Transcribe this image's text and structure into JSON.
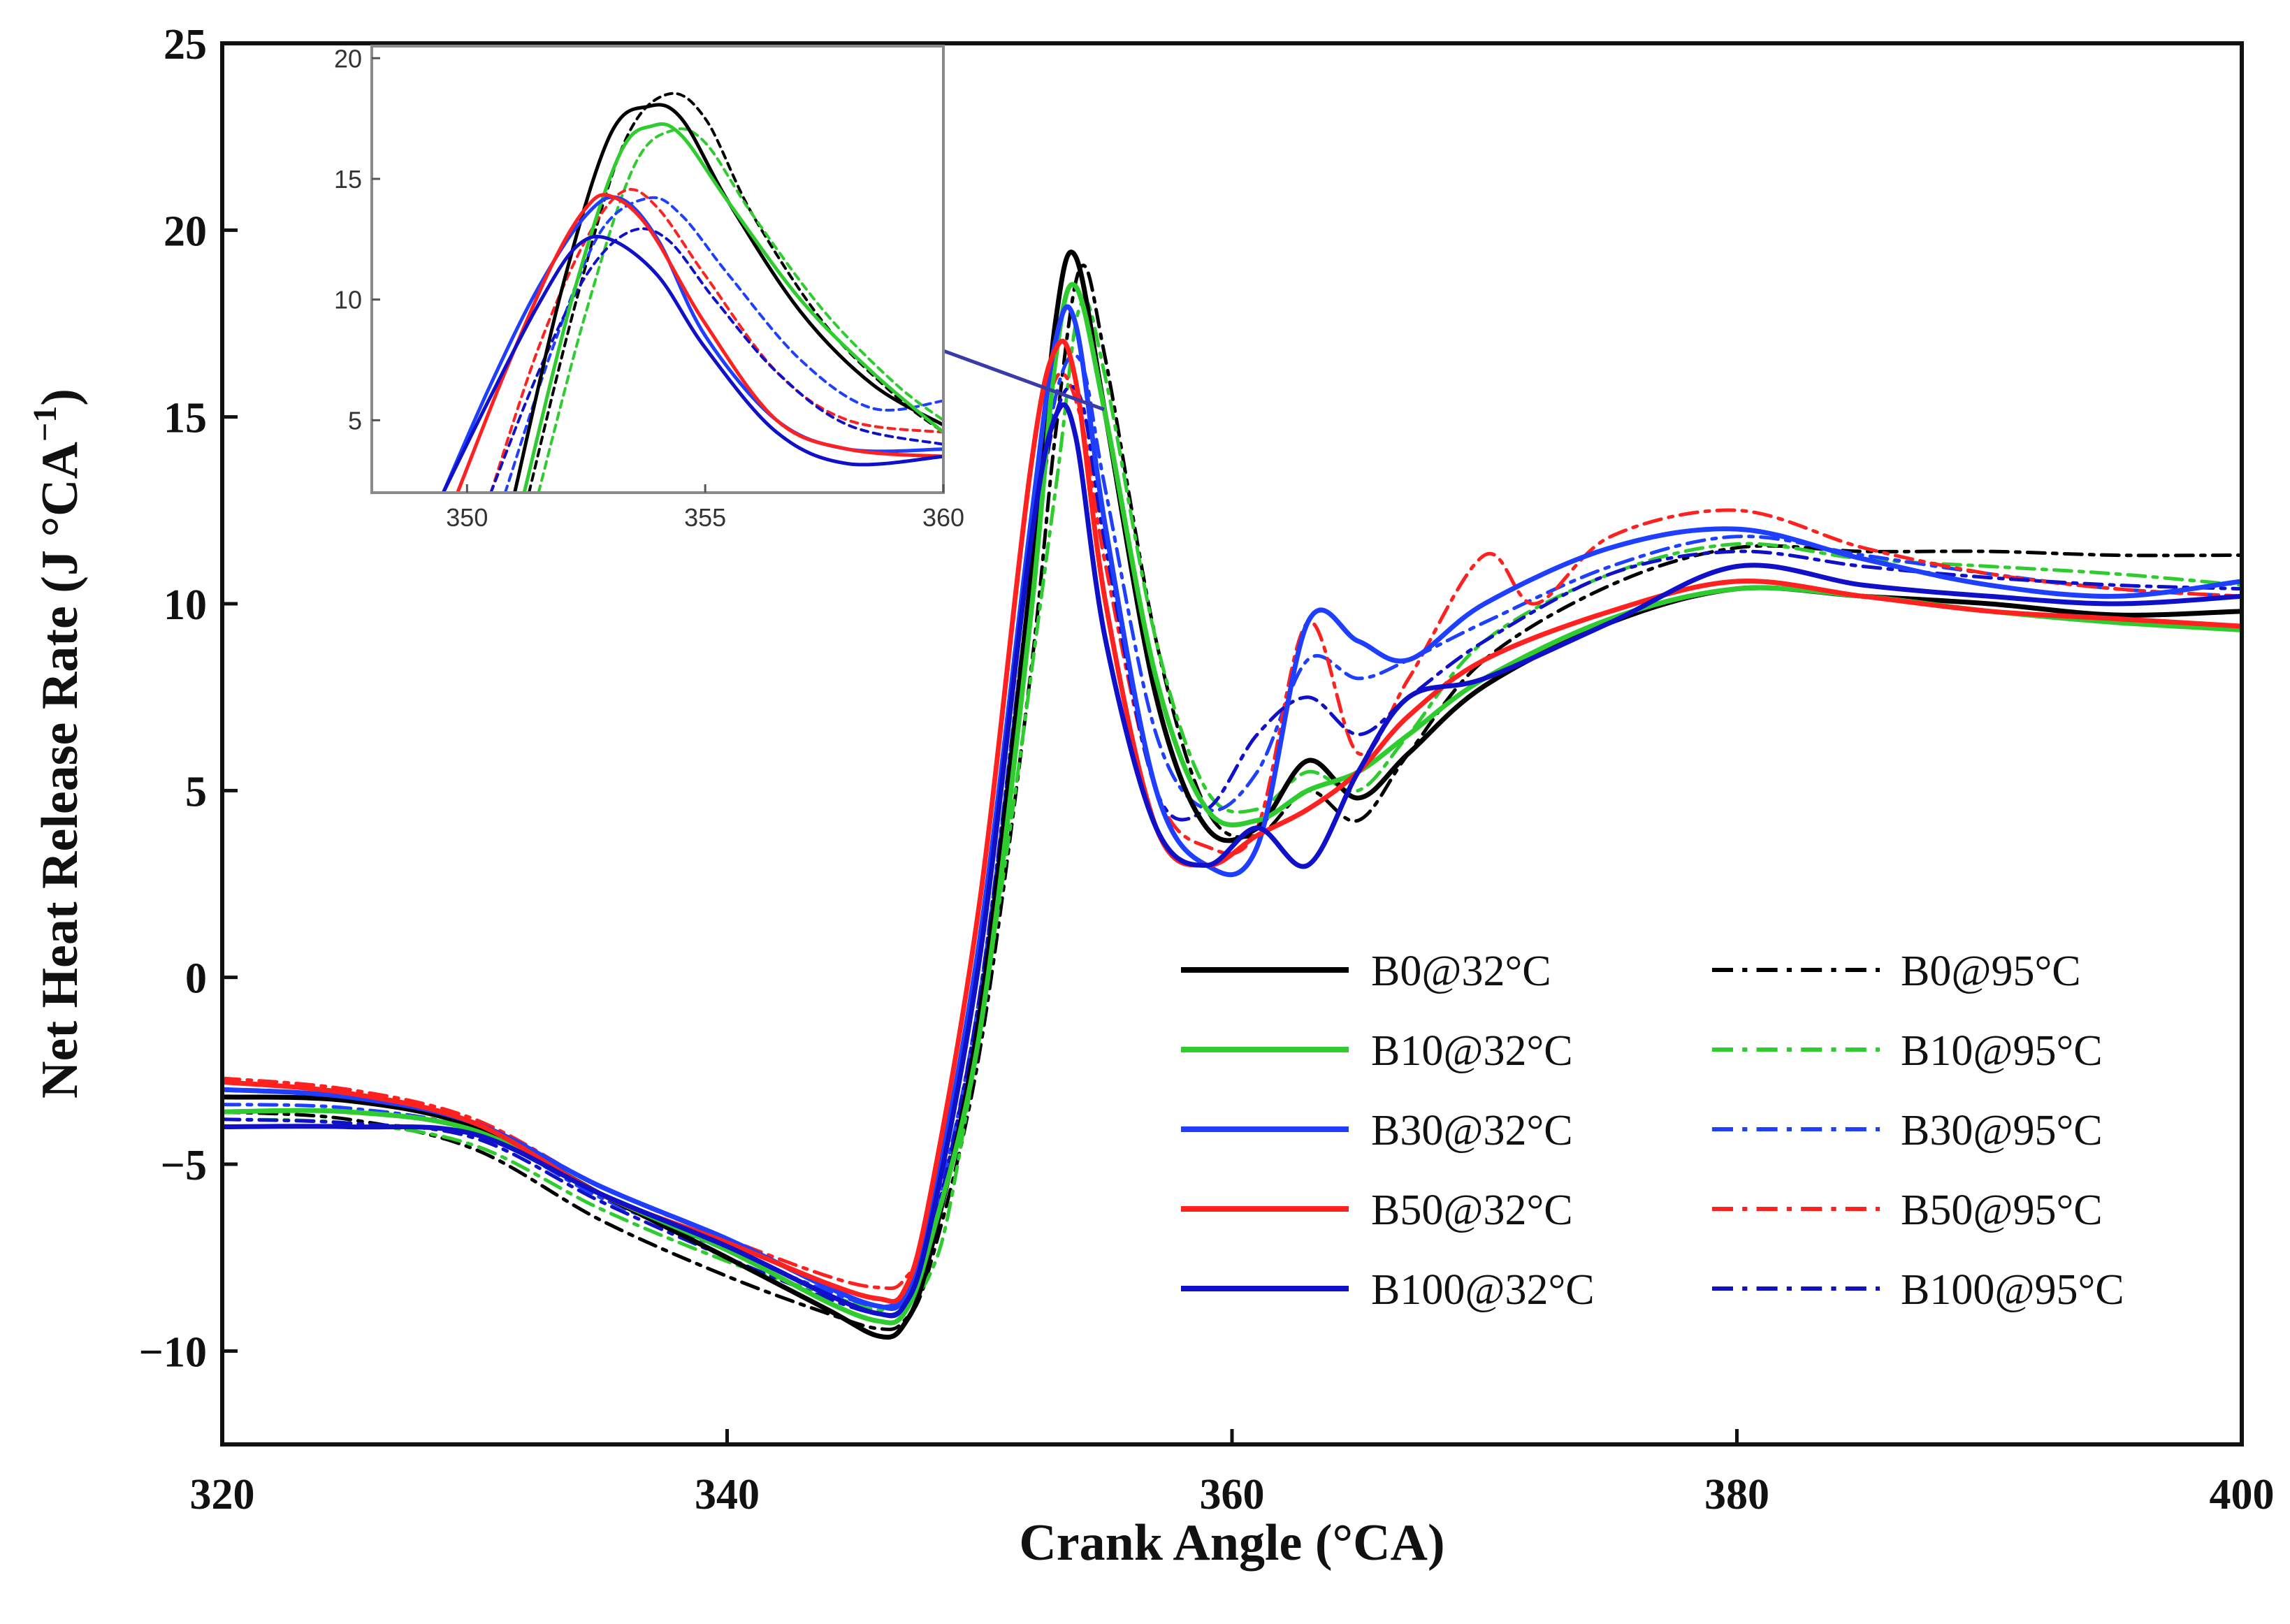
{
  "chart_data": {
    "type": "line",
    "xlabel": "Crank Angle (°CA)",
    "ylabel": "Net Heat Release Rate (J °CA",
    "ylabel_superscript": "−1",
    "ylabel_close": ")",
    "xlim": [
      320,
      400
    ],
    "ylim": [
      -12.5,
      25
    ],
    "xticks": [
      320,
      340,
      360,
      380,
      400
    ],
    "yticks": [
      -10,
      -5,
      0,
      5,
      10,
      15,
      20,
      25
    ],
    "xtick_labels": [
      "320",
      "340",
      "360",
      "380",
      "400"
    ],
    "ytick_labels": [
      "−10",
      "−5",
      "0",
      "5",
      "10",
      "15",
      "20",
      "25"
    ],
    "grid": false,
    "legend_position": "lower-right",
    "series": [
      {
        "name": "B0@32°C",
        "color": "#000000",
        "dash": "solid",
        "x": [
          320,
          325,
          330,
          335,
          340,
          344,
          346,
          347,
          348,
          350,
          352,
          353,
          353.8,
          355,
          357,
          359,
          361,
          363,
          365,
          367,
          370,
          375,
          380,
          385,
          390,
          395,
          400
        ],
        "y": [
          -3.2,
          -3.3,
          -4.0,
          -5.8,
          -7.5,
          -8.9,
          -9.6,
          -9.3,
          -7.5,
          -1.0,
          10.5,
          17.5,
          19.3,
          15.0,
          7.5,
          4.0,
          4.0,
          5.8,
          4.8,
          6.0,
          7.8,
          9.5,
          10.4,
          10.2,
          10.0,
          9.7,
          9.8
        ]
      },
      {
        "name": "B10@32°C",
        "color": "#2ecc2e",
        "dash": "solid",
        "x": [
          320,
          325,
          330,
          335,
          340,
          344,
          346,
          347,
          348,
          350,
          352,
          353,
          353.8,
          355,
          357,
          359,
          361,
          363,
          365,
          367,
          370,
          375,
          380,
          385,
          390,
          395,
          400
        ],
        "y": [
          -3.6,
          -3.6,
          -4.1,
          -5.8,
          -7.3,
          -8.7,
          -9.2,
          -9.0,
          -7.2,
          -1.5,
          9.5,
          16.5,
          18.5,
          15.0,
          8.0,
          4.5,
          4.2,
          5.0,
          5.5,
          6.5,
          8.0,
          9.6,
          10.4,
          10.2,
          9.8,
          9.5,
          9.3
        ]
      },
      {
        "name": "B30@32°C",
        "color": "#1f3fff",
        "dash": "solid",
        "x": [
          320,
          325,
          330,
          335,
          340,
          344,
          346,
          347,
          348,
          350,
          352,
          353,
          353.8,
          355,
          357,
          359,
          361,
          363,
          365,
          367,
          370,
          375,
          380,
          385,
          390,
          395,
          400
        ],
        "y": [
          -3.0,
          -3.2,
          -3.9,
          -5.6,
          -7.0,
          -8.3,
          -8.8,
          -8.6,
          -6.5,
          1.0,
          12.0,
          17.0,
          17.5,
          12.0,
          5.0,
          3.0,
          3.5,
          9.5,
          9.0,
          8.5,
          10.0,
          11.5,
          12.0,
          11.2,
          10.5,
          10.2,
          10.6
        ]
      },
      {
        "name": "B50@32°C",
        "color": "#ff2020",
        "dash": "solid",
        "x": [
          320,
          325,
          330,
          335,
          340,
          344,
          346,
          347,
          348,
          350,
          352,
          353,
          353.8,
          355,
          357,
          359,
          361,
          363,
          365,
          367,
          370,
          375,
          380,
          385,
          390,
          395,
          400
        ],
        "y": [
          -2.8,
          -3.1,
          -3.9,
          -5.8,
          -7.1,
          -8.2,
          -8.6,
          -8.4,
          -6.0,
          2.0,
          13.5,
          16.8,
          16.0,
          10.0,
          4.0,
          3.0,
          3.8,
          4.5,
          5.5,
          7.0,
          8.5,
          9.8,
          10.6,
          10.2,
          9.8,
          9.6,
          9.4
        ]
      },
      {
        "name": "B100@32°C",
        "color": "#1010c8",
        "dash": "solid",
        "x": [
          320,
          325,
          330,
          335,
          340,
          344,
          346,
          347,
          348,
          350,
          352,
          353,
          353.8,
          355,
          357,
          359,
          361,
          363,
          365,
          367,
          370,
          375,
          380,
          385,
          390,
          395,
          400
        ],
        "y": [
          -4.0,
          -4.0,
          -4.2,
          -5.8,
          -7.2,
          -8.5,
          -9.0,
          -8.8,
          -6.8,
          0.5,
          11.5,
          15.0,
          14.5,
          9.0,
          4.0,
          3.0,
          4.0,
          3.0,
          5.5,
          7.5,
          8.0,
          9.5,
          11.0,
          10.5,
          10.2,
          10.0,
          10.2
        ]
      },
      {
        "name": "B0@95°C",
        "color": "#000000",
        "dash": "dashdot",
        "x": [
          320,
          325,
          330,
          335,
          340,
          344,
          346,
          347,
          348,
          350,
          352,
          353,
          354,
          355,
          357,
          359,
          361,
          363,
          365,
          367,
          370,
          375,
          380,
          385,
          390,
          395,
          400
        ],
        "y": [
          -3.6,
          -3.8,
          -4.6,
          -6.5,
          -8.0,
          -9.0,
          -9.4,
          -9.2,
          -7.8,
          -2.0,
          8.0,
          14.5,
          19.0,
          16.5,
          9.0,
          4.5,
          3.8,
          5.0,
          4.2,
          6.0,
          8.5,
          10.5,
          11.5,
          11.4,
          11.4,
          11.3,
          11.3
        ]
      },
      {
        "name": "B10@95°C",
        "color": "#2ecc2e",
        "dash": "dashdot",
        "x": [
          320,
          325,
          330,
          335,
          340,
          344,
          346,
          347,
          348,
          349,
          351,
          353,
          354,
          355,
          357,
          359,
          361,
          363,
          365,
          367,
          370,
          375,
          380,
          385,
          390,
          395,
          400
        ],
        "y": [
          -3.8,
          -3.9,
          -4.5,
          -6.2,
          -7.6,
          -8.5,
          -8.9,
          -8.6,
          -8.0,
          -5.5,
          3.0,
          13.0,
          18.0,
          16.0,
          9.0,
          5.0,
          4.5,
          5.5,
          5.0,
          6.5,
          9.0,
          10.8,
          11.6,
          11.2,
          11.0,
          10.8,
          10.5
        ]
      },
      {
        "name": "B30@95°C",
        "color": "#1f3fff",
        "dash": "dashdot",
        "x": [
          320,
          325,
          330,
          335,
          340,
          344,
          346,
          347,
          348,
          350,
          352,
          353,
          354,
          355,
          357,
          359,
          361,
          363,
          365,
          367,
          370,
          375,
          380,
          385,
          390,
          395,
          400
        ],
        "y": [
          -3.4,
          -3.5,
          -4.1,
          -5.9,
          -7.3,
          -8.4,
          -8.8,
          -8.5,
          -7.0,
          -0.5,
          10.5,
          15.5,
          16.5,
          13.0,
          6.5,
          4.5,
          5.5,
          8.5,
          8.0,
          8.5,
          9.5,
          11.0,
          11.8,
          11.3,
          10.8,
          10.4,
          10.2
        ]
      },
      {
        "name": "B50@95°C",
        "color": "#ff2020",
        "dash": "dashdot",
        "x": [
          320,
          325,
          330,
          335,
          340,
          344,
          346,
          347,
          348,
          350,
          352,
          353,
          354,
          355,
          357,
          359,
          361,
          363,
          365,
          367,
          370,
          372,
          375,
          380,
          385,
          390,
          395,
          400
        ],
        "y": [
          -2.7,
          -3.0,
          -3.8,
          -5.6,
          -7.0,
          -8.0,
          -8.3,
          -8.1,
          -6.5,
          0.5,
          12.0,
          16.0,
          15.0,
          11.0,
          5.0,
          3.5,
          4.0,
          9.5,
          6.0,
          8.0,
          11.3,
          10.0,
          11.8,
          12.5,
          11.5,
          10.8,
          10.4,
          10.2
        ]
      },
      {
        "name": "B100@95°C",
        "color": "#1010c8",
        "dash": "dashdot",
        "x": [
          320,
          325,
          330,
          335,
          340,
          344,
          346,
          347,
          348,
          350,
          352,
          353,
          354,
          355,
          357,
          359,
          361,
          363,
          365,
          367,
          370,
          375,
          380,
          385,
          390,
          395,
          400
        ],
        "y": [
          -3.8,
          -3.9,
          -4.3,
          -6.0,
          -7.5,
          -8.6,
          -9.0,
          -8.8,
          -7.2,
          -0.5,
          10.5,
          15.0,
          15.5,
          11.5,
          5.0,
          4.5,
          6.5,
          7.5,
          6.5,
          7.5,
          9.0,
          10.8,
          11.4,
          11.0,
          10.7,
          10.5,
          10.4
        ]
      }
    ],
    "inset": {
      "xlim": [
        348,
        360
      ],
      "ylim": [
        2,
        20.5
      ],
      "xticks": [
        350,
        355,
        360
      ],
      "yticks": [
        5,
        10,
        15,
        20
      ],
      "xtick_labels": [
        "350",
        "355",
        "360"
      ],
      "ytick_labels": [
        "5",
        "10",
        "15",
        "20"
      ],
      "series": [
        {
          "name": "B0@32°C",
          "color": "#000000",
          "dash": "solid",
          "x": [
            351.0,
            352.0,
            353.0,
            353.8,
            354.5,
            355.5,
            357.0,
            358.5,
            360.0
          ],
          "y": [
            2.0,
            10.5,
            16.8,
            18.0,
            17.5,
            14.0,
            9.5,
            6.5,
            4.8
          ]
        },
        {
          "name": "B10@32°C",
          "color": "#2ecc2e",
          "dash": "solid",
          "x": [
            351.2,
            352.2,
            353.2,
            353.9,
            354.5,
            355.5,
            357.0,
            358.5,
            360.0
          ],
          "y": [
            2.0,
            10.0,
            16.0,
            17.2,
            16.8,
            14.0,
            10.0,
            7.0,
            4.5
          ]
        },
        {
          "name": "B30@32°C",
          "color": "#1f3fff",
          "dash": "solid",
          "x": [
            349.5,
            350.5,
            351.5,
            352.5,
            353.2,
            354.0,
            355.0,
            356.5,
            358.0,
            360.0
          ],
          "y": [
            2.0,
            6.5,
            10.5,
            13.5,
            14.2,
            12.5,
            8.5,
            5.0,
            3.8,
            3.8
          ]
        },
        {
          "name": "B50@32°C",
          "color": "#ff2020",
          "dash": "solid",
          "x": [
            349.8,
            350.8,
            351.8,
            352.5,
            353.0,
            353.8,
            355.0,
            356.5,
            358.0,
            360.0
          ],
          "y": [
            2.0,
            7.0,
            11.5,
            13.8,
            14.3,
            13.0,
            9.0,
            5.0,
            3.8,
            3.5
          ]
        },
        {
          "name": "B100@32°C",
          "color": "#1010c8",
          "dash": "solid",
          "x": [
            349.5,
            350.5,
            351.5,
            352.3,
            353.0,
            354.0,
            355.0,
            356.5,
            358.0,
            360.0
          ],
          "y": [
            2.0,
            6.0,
            9.8,
            12.2,
            12.5,
            11.0,
            8.0,
            4.5,
            3.2,
            3.5
          ]
        },
        {
          "name": "B0@95°C",
          "color": "#000000",
          "dash": "dashdot",
          "x": [
            351.3,
            352.3,
            353.3,
            354.2,
            355.0,
            356.0,
            357.5,
            359.0,
            360.0
          ],
          "y": [
            2.0,
            10.0,
            16.5,
            18.5,
            17.5,
            13.5,
            9.0,
            6.0,
            4.5
          ]
        },
        {
          "name": "B10@95°C",
          "color": "#2ecc2e",
          "dash": "dashdot",
          "x": [
            351.5,
            352.5,
            353.5,
            354.3,
            355.0,
            356.0,
            357.5,
            359.0,
            360.0
          ],
          "y": [
            2.0,
            9.5,
            15.5,
            17.0,
            16.5,
            13.5,
            9.5,
            6.5,
            5.0
          ]
        },
        {
          "name": "B30@95°C",
          "color": "#1f3fff",
          "dash": "dashdot",
          "x": [
            350.8,
            351.8,
            352.8,
            353.8,
            354.5,
            355.5,
            357.0,
            358.5,
            360.0
          ],
          "y": [
            2.0,
            8.0,
            12.8,
            14.2,
            13.5,
            11.0,
            7.5,
            5.5,
            5.8
          ]
        },
        {
          "name": "B50@95°C",
          "color": "#ff2020",
          "dash": "dashdot",
          "x": [
            350.5,
            351.5,
            352.5,
            353.3,
            354.0,
            355.0,
            356.5,
            358.0,
            360.0
          ],
          "y": [
            2.0,
            8.0,
            12.5,
            14.5,
            13.8,
            11.0,
            7.0,
            5.0,
            4.5
          ]
        },
        {
          "name": "B100@95°C",
          "color": "#1010c8",
          "dash": "dashdot",
          "x": [
            350.5,
            351.5,
            352.5,
            353.4,
            354.2,
            355.2,
            356.5,
            358.0,
            360.0
          ],
          "y": [
            2.0,
            7.0,
            11.0,
            12.8,
            12.5,
            10.0,
            7.0,
            4.8,
            4.0
          ]
        }
      ]
    }
  }
}
